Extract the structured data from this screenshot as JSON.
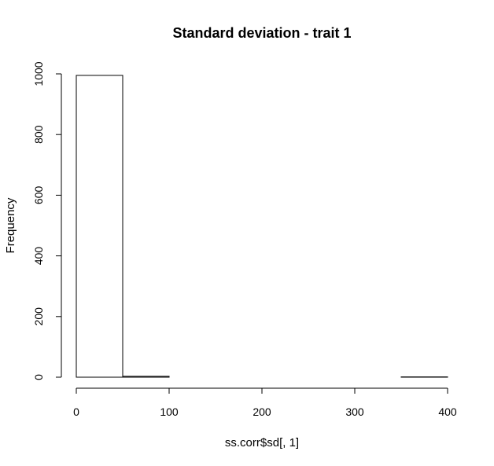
{
  "chart_data": {
    "type": "bar",
    "title": "Standard deviation - trait 1",
    "xlabel": "ss.corr$sd[, 1]",
    "ylabel": "Frequency",
    "bins": [
      {
        "x0": 0,
        "x1": 50,
        "count": 995
      },
      {
        "x0": 50,
        "x1": 100,
        "count": 3
      },
      {
        "x0": 100,
        "x1": 150,
        "count": 0
      },
      {
        "x0": 150,
        "x1": 200,
        "count": 0
      },
      {
        "x0": 200,
        "x1": 250,
        "count": 0
      },
      {
        "x0": 250,
        "x1": 300,
        "count": 0
      },
      {
        "x0": 300,
        "x1": 350,
        "count": 0
      },
      {
        "x0": 350,
        "x1": 400,
        "count": 1
      }
    ],
    "xlim": [
      0,
      400
    ],
    "ylim": [
      0,
      1000
    ],
    "xticks": [
      0,
      100,
      200,
      300,
      400
    ],
    "yticks": [
      0,
      200,
      400,
      600,
      800,
      1000
    ],
    "grid": false,
    "bar_fill": "#ffffff",
    "bar_stroke": "#000000"
  }
}
